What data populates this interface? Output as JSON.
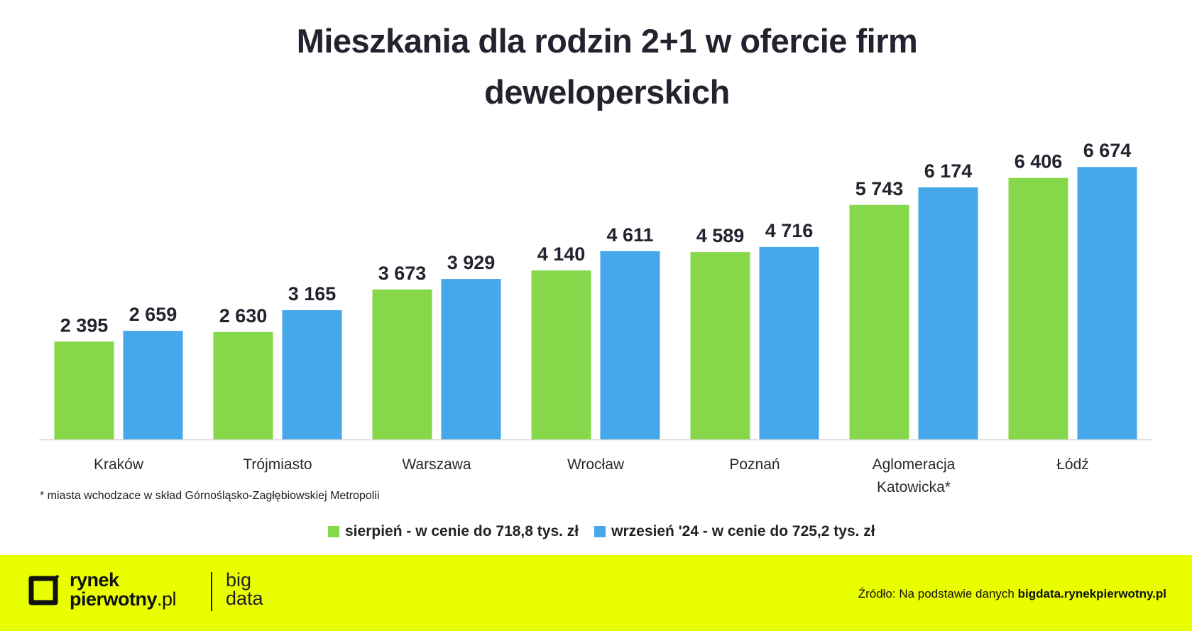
{
  "title_line1": "Mieszkania dla rodzin 2+1 w ofercie firm",
  "title_line2": "deweloperskich",
  "footnote": "* miasta wchodzace w skład Górnośląsko-Zagłębiowskiej Metropolii",
  "colors": {
    "series1": "#86d84a",
    "series2": "#46a8ea",
    "footer_bg": "#e9ff00"
  },
  "chart_data": {
    "type": "bar",
    "title": "Mieszkania dla rodzin 2+1 w ofercie firm deweloperskich",
    "xlabel": "",
    "ylabel": "",
    "ylim": [
      0,
      6800
    ],
    "grid": false,
    "legend": "bottom",
    "categories": [
      [
        "Kraków"
      ],
      [
        "Trójmiasto"
      ],
      [
        "Warszawa"
      ],
      [
        "Wrocław"
      ],
      [
        "Poznań"
      ],
      [
        "Aglomeracja",
        "Katowicka*"
      ],
      [
        "Łódź"
      ]
    ],
    "series": [
      {
        "name": "sierpień - w cenie do 718,8 tys. zł",
        "color": "#86d84a",
        "values": [
          2395,
          2630,
          3673,
          4140,
          4589,
          5743,
          6406
        ],
        "labels": [
          "2 395",
          "2 630",
          "3 673",
          "4 140",
          "4 589",
          "5 743",
          "6 406"
        ]
      },
      {
        "name": "wrzesień '24 - w cenie do 725,2 tys. zł",
        "color": "#46a8ea",
        "values": [
          2659,
          3165,
          3929,
          4611,
          4716,
          6174,
          6674
        ],
        "labels": [
          "2 659",
          "3 165",
          "3 929",
          "4 611",
          "4 716",
          "6 174",
          "6 674"
        ]
      }
    ]
  },
  "legend": {
    "item1": "sierpień - w cenie do 718,8 tys. zł",
    "item2": "wrzesień '24 - w cenie do 725,2 tys. zł"
  },
  "footer": {
    "logo_line1": "rynek",
    "logo_line2": "pierwotny",
    "logo_suffix": ".pl",
    "big": "big",
    "data": "data",
    "source_prefix": "Źródło: Na podstawie danych",
    "source_link": "bigdata.rynekpierwotny.pl"
  }
}
